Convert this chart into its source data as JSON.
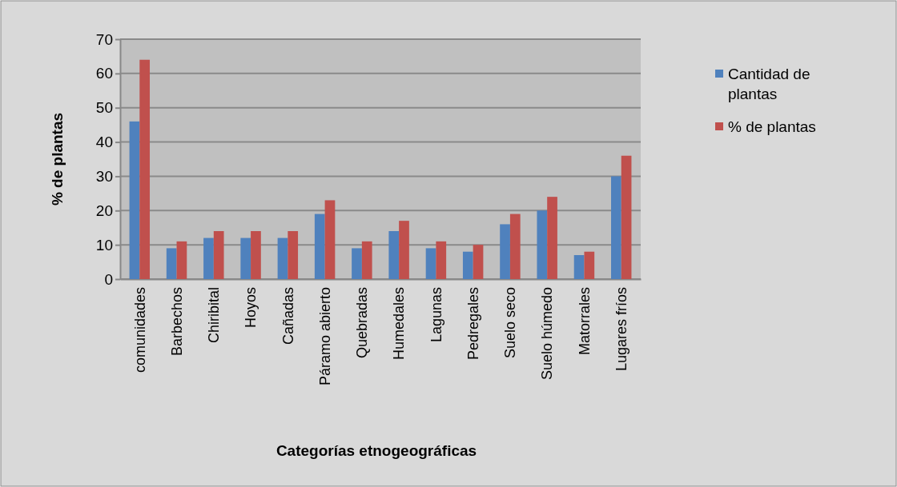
{
  "chart_data": {
    "type": "bar",
    "xlabel": "Categorías etnogeográficas",
    "ylabel": "% de plantas",
    "categories": [
      "comunidades",
      "Barbechos",
      "Chiribital",
      "Hoyos",
      "Cañadas",
      "Páramo abierto",
      "Quebradas",
      "Humedales",
      "Lagunas",
      "Pedregales",
      "Suelo seco",
      "Suelo húmedo",
      "Matorrales",
      "Lugares fríos"
    ],
    "series": [
      {
        "name": "Cantidad de plantas",
        "color": "#4f81bd",
        "values": [
          46,
          9,
          12,
          12,
          12,
          19,
          9,
          14,
          9,
          8,
          16,
          20,
          7,
          30
        ]
      },
      {
        "name": "% de plantas",
        "color": "#c0504d",
        "values": [
          64,
          11,
          14,
          14,
          14,
          23,
          11,
          17,
          11,
          10,
          19,
          24,
          8,
          36
        ]
      }
    ],
    "ylim": [
      0,
      70
    ],
    "yticks": [
      0,
      10,
      20,
      30,
      40,
      50,
      60,
      70
    ],
    "grid": "y",
    "legend": "right"
  }
}
